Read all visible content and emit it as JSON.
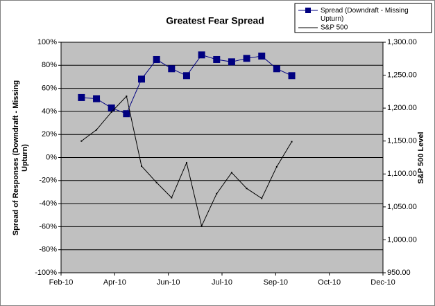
{
  "chart_data": {
    "type": "line",
    "title": "Greatest Fear Spread",
    "ylabel": "Spread of Responses (Downdraft - Missing Upturn)",
    "y2label": "S&P 500 Level",
    "x": [
      19,
      33,
      47,
      61,
      75,
      89,
      103,
      117,
      131,
      145,
      159,
      173,
      187,
      201,
      215
    ],
    "xlim": [
      0,
      300
    ],
    "xticks": [
      {
        "value": 0,
        "label": "Feb-10"
      },
      {
        "value": 50,
        "label": "Apr-10"
      },
      {
        "value": 100,
        "label": "Jun-10"
      },
      {
        "value": 150,
        "label": "Jul-10"
      },
      {
        "value": 200,
        "label": "Sep-10"
      },
      {
        "value": 250,
        "label": "Oct-10"
      },
      {
        "value": 300,
        "label": "Dec-10"
      }
    ],
    "ylim": [
      -100,
      100
    ],
    "yticks": [
      {
        "value": -100,
        "label": "-100%"
      },
      {
        "value": -80,
        "label": "-80%"
      },
      {
        "value": -60,
        "label": "-60%"
      },
      {
        "value": -40,
        "label": "-40%"
      },
      {
        "value": -20,
        "label": "-20%"
      },
      {
        "value": 0,
        "label": "0%"
      },
      {
        "value": 20,
        "label": "20%"
      },
      {
        "value": 40,
        "label": "40%"
      },
      {
        "value": 60,
        "label": "60%"
      },
      {
        "value": 80,
        "label": "80%"
      },
      {
        "value": 100,
        "label": "100%"
      }
    ],
    "y2lim": [
      950,
      1300
    ],
    "y2ticks": [
      {
        "value": 950,
        "label": "950.00"
      },
      {
        "value": 1000,
        "label": "1,000.00"
      },
      {
        "value": 1050,
        "label": "1,050.00"
      },
      {
        "value": 1100,
        "label": "1,100.00"
      },
      {
        "value": 1150,
        "label": "1,150.00"
      },
      {
        "value": 1200,
        "label": "1,200.00"
      },
      {
        "value": 1250,
        "label": "1,250.00"
      },
      {
        "value": 1300,
        "label": "1,300.00"
      }
    ],
    "grid": true,
    "legend": "top-right",
    "plot_background": "#c0c0c0",
    "series": [
      {
        "name": "Spread (Downdraft - Missing Upturn)",
        "color": "#000080",
        "values": [
          52,
          51,
          43,
          38,
          68,
          85,
          77,
          71,
          89,
          85,
          83,
          86,
          88,
          77,
          71
        ]
      },
      {
        "name": "S&P 500",
        "color": "#000000",
        "axis": "y2",
        "values": [
          1150,
          1167,
          1194,
          1218,
          1112,
          1087,
          1064,
          1117,
          1021,
          1070,
          1102,
          1078,
          1063,
          1111,
          1149
        ]
      }
    ]
  }
}
